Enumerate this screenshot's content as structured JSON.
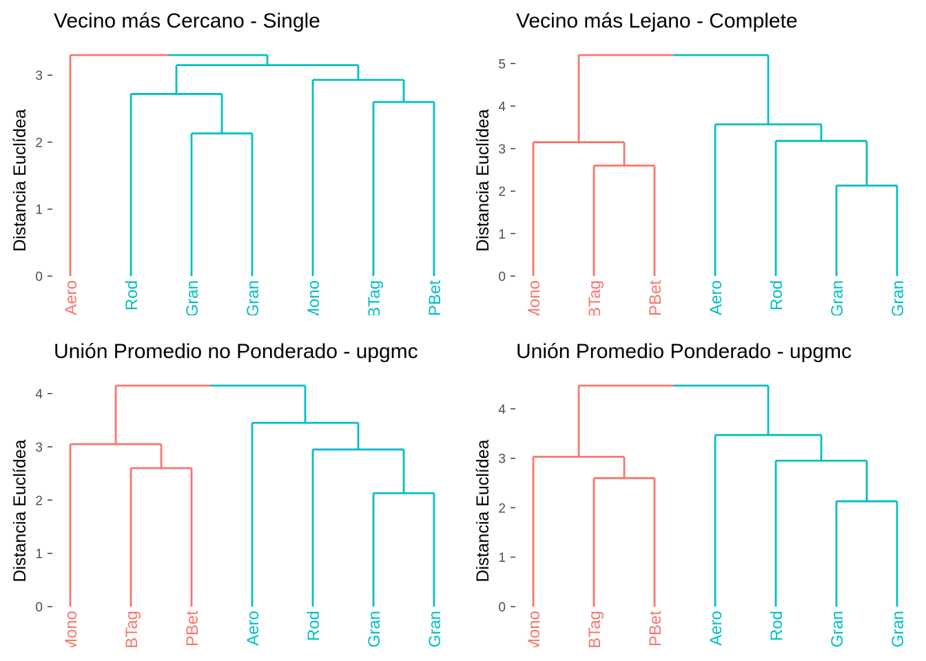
{
  "colors": {
    "cluster_1": "#F8766D",
    "cluster_2": "#00BFC4",
    "text": "#000000",
    "tick_text": "#4d4d4d"
  },
  "chart_data": [
    {
      "type": "dendrogram",
      "title": "Vecino más Cercano - Single",
      "xlabel": "",
      "ylabel": "Distancia Euclídea",
      "ylim": [
        0,
        3.3
      ],
      "yticks": [
        0,
        1,
        2,
        3
      ],
      "grid": false,
      "leaves": [
        "Aero",
        "Rod",
        "Gran",
        "Gran",
        "Mono",
        "BTag",
        "PBet"
      ],
      "leaf_clusters": [
        1,
        2,
        2,
        2,
        2,
        2,
        2
      ],
      "merges": [
        {
          "left": {
            "leaf": 2
          },
          "right": {
            "leaf": 3
          },
          "height": 2.13,
          "cluster": 2
        },
        {
          "left": {
            "leaf": 5
          },
          "right": {
            "leaf": 6
          },
          "height": 2.6,
          "cluster": 2
        },
        {
          "left": {
            "leaf": 1
          },
          "right": {
            "node": 0
          },
          "height": 2.72,
          "cluster": 2
        },
        {
          "left": {
            "leaf": 4
          },
          "right": {
            "node": 1
          },
          "height": 2.93,
          "cluster": 2
        },
        {
          "left": {
            "node": 2
          },
          "right": {
            "node": 3
          },
          "height": 3.15,
          "cluster": 2
        },
        {
          "left": {
            "leaf": 0
          },
          "right": {
            "node": 4
          },
          "height": 3.3,
          "cluster": 0
        }
      ]
    },
    {
      "type": "dendrogram",
      "title": "Vecino más Lejano - Complete",
      "xlabel": "",
      "ylabel": "Distancia Euclídea",
      "ylim": [
        0,
        5.2
      ],
      "yticks": [
        0,
        1,
        2,
        3,
        4,
        5
      ],
      "grid": false,
      "leaves": [
        "Mono",
        "BTag",
        "PBet",
        "Aero",
        "Rod",
        "Gran",
        "Gran"
      ],
      "leaf_clusters": [
        1,
        1,
        1,
        2,
        2,
        2,
        2
      ],
      "merges": [
        {
          "left": {
            "leaf": 5
          },
          "right": {
            "leaf": 6
          },
          "height": 2.13,
          "cluster": 2
        },
        {
          "left": {
            "leaf": 1
          },
          "right": {
            "leaf": 2
          },
          "height": 2.6,
          "cluster": 1
        },
        {
          "left": {
            "leaf": 0
          },
          "right": {
            "node": 1
          },
          "height": 3.15,
          "cluster": 1
        },
        {
          "left": {
            "leaf": 4
          },
          "right": {
            "node": 0
          },
          "height": 3.18,
          "cluster": 2
        },
        {
          "left": {
            "leaf": 3
          },
          "right": {
            "node": 3
          },
          "height": 3.57,
          "cluster": 2
        },
        {
          "left": {
            "node": 2
          },
          "right": {
            "node": 4
          },
          "height": 5.2,
          "cluster": 0
        }
      ]
    },
    {
      "type": "dendrogram",
      "title": "Unión Promedio no Ponderado - upgmc",
      "xlabel": "",
      "ylabel": "Distancia Euclídea",
      "ylim": [
        0,
        4.15
      ],
      "yticks": [
        0,
        1,
        2,
        3,
        4
      ],
      "grid": false,
      "leaves": [
        "Mono",
        "BTag",
        "PBet",
        "Aero",
        "Rod",
        "Gran",
        "Gran"
      ],
      "leaf_clusters": [
        1,
        1,
        1,
        2,
        2,
        2,
        2
      ],
      "merges": [
        {
          "left": {
            "leaf": 5
          },
          "right": {
            "leaf": 6
          },
          "height": 2.13,
          "cluster": 2
        },
        {
          "left": {
            "leaf": 1
          },
          "right": {
            "leaf": 2
          },
          "height": 2.6,
          "cluster": 1
        },
        {
          "left": {
            "leaf": 4
          },
          "right": {
            "node": 0
          },
          "height": 2.95,
          "cluster": 2
        },
        {
          "left": {
            "leaf": 0
          },
          "right": {
            "node": 1
          },
          "height": 3.05,
          "cluster": 1
        },
        {
          "left": {
            "leaf": 3
          },
          "right": {
            "node": 2
          },
          "height": 3.45,
          "cluster": 2
        },
        {
          "left": {
            "node": 3
          },
          "right": {
            "node": 4
          },
          "height": 4.15,
          "cluster": 0
        }
      ]
    },
    {
      "type": "dendrogram",
      "title": "Unión Promedio Ponderado - upgmc",
      "xlabel": "",
      "ylabel": "Distancia Euclídea",
      "ylim": [
        0,
        4.47
      ],
      "yticks": [
        0,
        1,
        2,
        3,
        4
      ],
      "grid": false,
      "leaves": [
        "Mono",
        "BTag",
        "PBet",
        "Aero",
        "Rod",
        "Gran",
        "Gran"
      ],
      "leaf_clusters": [
        1,
        1,
        1,
        2,
        2,
        2,
        2
      ],
      "merges": [
        {
          "left": {
            "leaf": 5
          },
          "right": {
            "leaf": 6
          },
          "height": 2.13,
          "cluster": 2
        },
        {
          "left": {
            "leaf": 1
          },
          "right": {
            "leaf": 2
          },
          "height": 2.6,
          "cluster": 1
        },
        {
          "left": {
            "leaf": 4
          },
          "right": {
            "node": 0
          },
          "height": 2.95,
          "cluster": 2
        },
        {
          "left": {
            "leaf": 0
          },
          "right": {
            "node": 1
          },
          "height": 3.03,
          "cluster": 1
        },
        {
          "left": {
            "leaf": 3
          },
          "right": {
            "node": 2
          },
          "height": 3.47,
          "cluster": 2
        },
        {
          "left": {
            "node": 3
          },
          "right": {
            "node": 4
          },
          "height": 4.47,
          "cluster": 0
        }
      ]
    }
  ]
}
